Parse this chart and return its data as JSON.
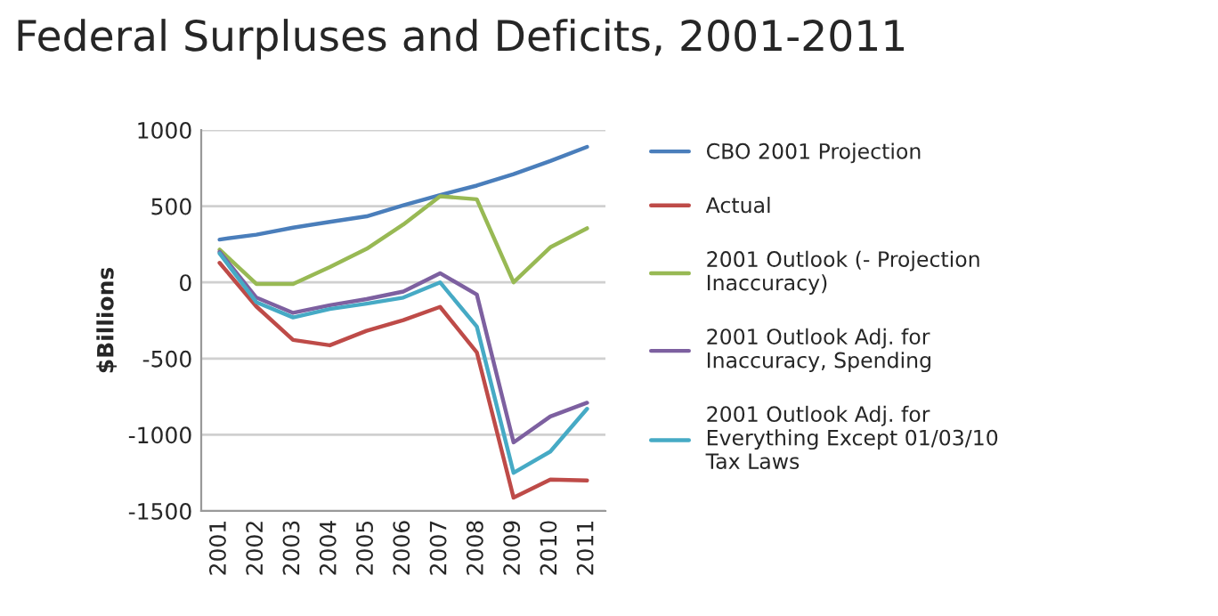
{
  "chart_data": {
    "type": "line",
    "title": "Federal Surpluses and Deficits, 2001-2011",
    "ylabel": "$Billions",
    "categories": [
      "2001",
      "2002",
      "2003",
      "2004",
      "2005",
      "2006",
      "2007",
      "2008",
      "2009",
      "2010",
      "2011"
    ],
    "series": [
      {
        "name": "CBO 2001 Projection",
        "color": "#4a7ebb",
        "values": [
          281,
          313,
          359,
          397,
          433,
          505,
          573,
          635,
          710,
          796,
          889
        ]
      },
      {
        "name": "Actual",
        "color": "#be4b48",
        "values": [
          128,
          -158,
          -378,
          -413,
          -318,
          -248,
          -161,
          -459,
          -1413,
          -1294,
          -1300
        ]
      },
      {
        "name": "2001 Outlook (- Projection\nInaccuracy)",
        "color": "#98b954",
        "values": [
          215,
          -10,
          -10,
          100,
          220,
          380,
          565,
          545,
          0,
          230,
          355
        ]
      },
      {
        "name": "2001 Outlook Adj. for\nInaccuracy, Spending",
        "color": "#7d60a0",
        "values": [
          200,
          -100,
          -200,
          -150,
          -110,
          -60,
          60,
          -80,
          -1050,
          -880,
          -790
        ]
      },
      {
        "name": "2001 Outlook Adj. for\nEverything Except 01/03/10\nTax Laws",
        "color": "#46aac5",
        "values": [
          190,
          -130,
          -230,
          -175,
          -140,
          -100,
          0,
          -290,
          -1250,
          -1110,
          -830
        ]
      }
    ],
    "ylim": [
      -1500,
      1000
    ],
    "yticks": [
      -1500,
      -1000,
      -500,
      0,
      500,
      1000
    ],
    "grid": "y",
    "legend": "right",
    "marker": "none",
    "line_style": "solid"
  }
}
